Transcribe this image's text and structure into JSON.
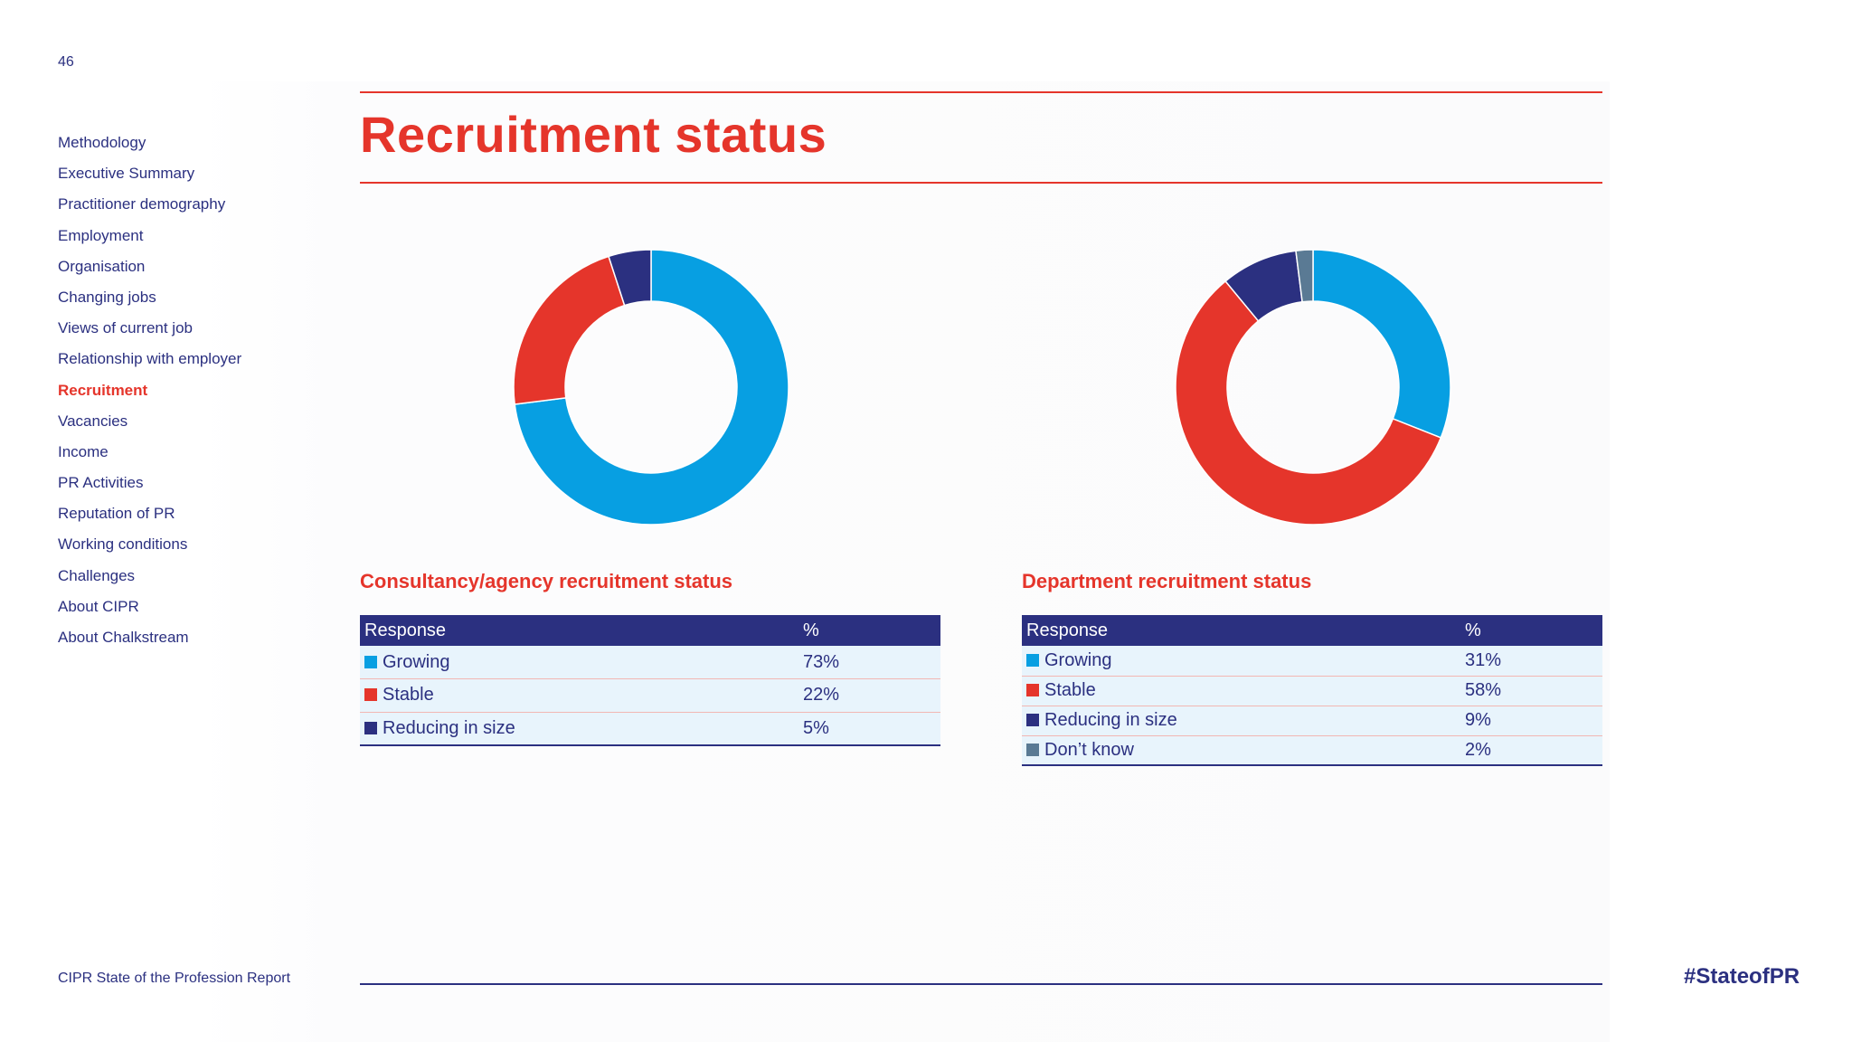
{
  "page_number": "46",
  "sidebar": {
    "items": [
      {
        "label": "Methodology",
        "active": false
      },
      {
        "label": "Executive Summary",
        "active": false
      },
      {
        "label": "Practitioner demography",
        "active": false
      },
      {
        "label": "Employment",
        "active": false
      },
      {
        "label": "Organisation",
        "active": false
      },
      {
        "label": "Changing jobs",
        "active": false
      },
      {
        "label": "Views of current job",
        "active": false
      },
      {
        "label": "Relationship with employer",
        "active": false
      },
      {
        "label": "Recruitment",
        "active": true
      },
      {
        "label": "Vacancies",
        "active": false
      },
      {
        "label": "Income",
        "active": false
      },
      {
        "label": "PR Activities",
        "active": false
      },
      {
        "label": "Reputation of PR",
        "active": false
      },
      {
        "label": "Working conditions",
        "active": false
      },
      {
        "label": "Challenges",
        "active": false
      },
      {
        "label": "About CIPR",
        "active": false
      },
      {
        "label": "About Chalkstream",
        "active": false
      }
    ]
  },
  "page_title": "Recruitment status",
  "colors": {
    "accent_red": "#e5352b",
    "navy": "#2b3080",
    "growing": "#079fe2",
    "stable": "#e5352b",
    "reducing": "#2b3080",
    "dont_know": "#5a7a94",
    "row_bg": "#e8f4fc"
  },
  "chart_data": [
    {
      "type": "pie",
      "title": "Consultancy/agency recruitment status",
      "header": {
        "response": "Response",
        "percent": "%"
      },
      "categories": [
        "Growing",
        "Stable",
        "Reducing in size"
      ],
      "values": [
        73,
        22,
        5
      ],
      "labels": [
        "73%",
        "22%",
        "5%"
      ],
      "colors": [
        "#079fe2",
        "#e5352b",
        "#2b3080"
      ]
    },
    {
      "type": "pie",
      "title": "Department recruitment status",
      "header": {
        "response": "Response",
        "percent": "%"
      },
      "categories": [
        "Growing",
        "Stable",
        "Reducing in size",
        "Don’t know"
      ],
      "values": [
        31,
        58,
        9,
        2
      ],
      "labels": [
        "31%",
        "58%",
        "9%",
        "2%"
      ],
      "colors": [
        "#079fe2",
        "#e5352b",
        "#2b3080",
        "#5a7a94"
      ]
    }
  ],
  "footer": {
    "report_name": "CIPR State of the Profession Report",
    "hashtag": "#StateofPR"
  }
}
